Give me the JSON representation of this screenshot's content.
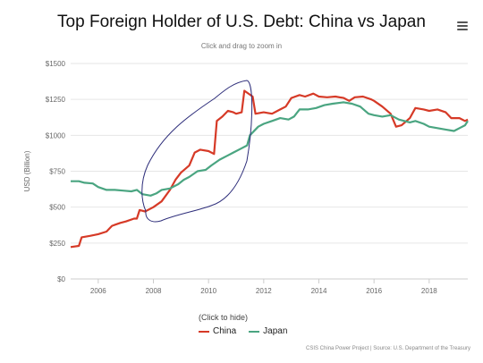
{
  "header": {
    "menu_icon": "hamburger-menu-icon"
  },
  "legend": {
    "hint": "(Click to hide)"
  },
  "credits": "CSIS China Power Project | Source: U.S. Department of the Treasury",
  "chart_data": {
    "type": "line",
    "title": "Top Foreign Holder of U.S. Debt: China vs Japan",
    "subtitle": "Click and drag to zoom in",
    "ylabel": "USD (Billion)",
    "xlabel": "",
    "xlim": [
      2005.0,
      2019.4
    ],
    "ylim": [
      0,
      1500
    ],
    "x_ticks": [
      2006,
      2008,
      2010,
      2012,
      2014,
      2016,
      2018
    ],
    "x_tick_labels": [
      "2006",
      "2008",
      "2010",
      "2012",
      "2014",
      "2016",
      "2018"
    ],
    "y_ticks": [
      0,
      250,
      500,
      750,
      1000,
      1250,
      1500
    ],
    "y_tick_labels": [
      "$0",
      "$250",
      "$500",
      "$750",
      "$1000",
      "$1250",
      "$1500"
    ],
    "grid": true,
    "legend_position": "bottom",
    "series": [
      {
        "name": "China",
        "color": "#d63a27",
        "points": [
          [
            2005.0,
            222
          ],
          [
            2005.3,
            230
          ],
          [
            2005.4,
            290
          ],
          [
            2005.7,
            300
          ],
          [
            2006.0,
            312
          ],
          [
            2006.3,
            330
          ],
          [
            2006.5,
            370
          ],
          [
            2006.8,
            390
          ],
          [
            2007.0,
            400
          ],
          [
            2007.3,
            420
          ],
          [
            2007.4,
            420
          ],
          [
            2007.5,
            480
          ],
          [
            2007.7,
            470
          ],
          [
            2008.0,
            500
          ],
          [
            2008.3,
            540
          ],
          [
            2008.6,
            620
          ],
          [
            2008.8,
            690
          ],
          [
            2009.0,
            740
          ],
          [
            2009.3,
            790
          ],
          [
            2009.5,
            880
          ],
          [
            2009.7,
            900
          ],
          [
            2010.0,
            890
          ],
          [
            2010.2,
            870
          ],
          [
            2010.3,
            1100
          ],
          [
            2010.5,
            1130
          ],
          [
            2010.7,
            1170
          ],
          [
            2010.9,
            1160
          ],
          [
            2011.0,
            1150
          ],
          [
            2011.2,
            1160
          ],
          [
            2011.3,
            1310
          ],
          [
            2011.6,
            1270
          ],
          [
            2011.7,
            1150
          ],
          [
            2012.0,
            1160
          ],
          [
            2012.3,
            1150
          ],
          [
            2012.6,
            1180
          ],
          [
            2012.8,
            1200
          ],
          [
            2013.0,
            1260
          ],
          [
            2013.3,
            1280
          ],
          [
            2013.5,
            1270
          ],
          [
            2013.8,
            1290
          ],
          [
            2014.0,
            1270
          ],
          [
            2014.3,
            1265
          ],
          [
            2014.6,
            1270
          ],
          [
            2014.9,
            1260
          ],
          [
            2015.1,
            1240
          ],
          [
            2015.3,
            1265
          ],
          [
            2015.6,
            1270
          ],
          [
            2015.9,
            1250
          ],
          [
            2016.0,
            1240
          ],
          [
            2016.3,
            1200
          ],
          [
            2016.6,
            1150
          ],
          [
            2016.8,
            1060
          ],
          [
            2017.0,
            1070
          ],
          [
            2017.3,
            1120
          ],
          [
            2017.5,
            1190
          ],
          [
            2017.8,
            1180
          ],
          [
            2018.0,
            1170
          ],
          [
            2018.3,
            1180
          ],
          [
            2018.6,
            1160
          ],
          [
            2018.8,
            1120
          ],
          [
            2019.1,
            1120
          ],
          [
            2019.3,
            1100
          ],
          [
            2019.4,
            1110
          ]
        ]
      },
      {
        "name": "Japan",
        "color": "#4aa581",
        "points": [
          [
            2005.0,
            680
          ],
          [
            2005.3,
            680
          ],
          [
            2005.5,
            670
          ],
          [
            2005.8,
            665
          ],
          [
            2006.0,
            640
          ],
          [
            2006.3,
            620
          ],
          [
            2006.6,
            620
          ],
          [
            2006.9,
            615
          ],
          [
            2007.2,
            610
          ],
          [
            2007.4,
            620
          ],
          [
            2007.6,
            590
          ],
          [
            2007.9,
            580
          ],
          [
            2008.1,
            595
          ],
          [
            2008.3,
            620
          ],
          [
            2008.6,
            630
          ],
          [
            2008.9,
            660
          ],
          [
            2009.1,
            690
          ],
          [
            2009.3,
            710
          ],
          [
            2009.6,
            750
          ],
          [
            2009.9,
            760
          ],
          [
            2010.1,
            790
          ],
          [
            2010.4,
            830
          ],
          [
            2010.7,
            860
          ],
          [
            2010.9,
            880
          ],
          [
            2011.2,
            910
          ],
          [
            2011.4,
            930
          ],
          [
            2011.5,
            1000
          ],
          [
            2011.8,
            1060
          ],
          [
            2012.0,
            1080
          ],
          [
            2012.3,
            1100
          ],
          [
            2012.6,
            1120
          ],
          [
            2012.9,
            1110
          ],
          [
            2013.1,
            1130
          ],
          [
            2013.3,
            1180
          ],
          [
            2013.6,
            1180
          ],
          [
            2013.9,
            1190
          ],
          [
            2014.2,
            1210
          ],
          [
            2014.5,
            1220
          ],
          [
            2014.9,
            1230
          ],
          [
            2015.2,
            1220
          ],
          [
            2015.5,
            1200
          ],
          [
            2015.8,
            1150
          ],
          [
            2016.0,
            1140
          ],
          [
            2016.3,
            1130
          ],
          [
            2016.6,
            1140
          ],
          [
            2016.9,
            1110
          ],
          [
            2017.1,
            1100
          ],
          [
            2017.3,
            1090
          ],
          [
            2017.5,
            1100
          ],
          [
            2017.8,
            1080
          ],
          [
            2018.0,
            1060
          ],
          [
            2018.3,
            1050
          ],
          [
            2018.6,
            1040
          ],
          [
            2018.9,
            1030
          ],
          [
            2019.1,
            1050
          ],
          [
            2019.3,
            1070
          ],
          [
            2019.4,
            1100
          ]
        ]
      }
    ]
  }
}
